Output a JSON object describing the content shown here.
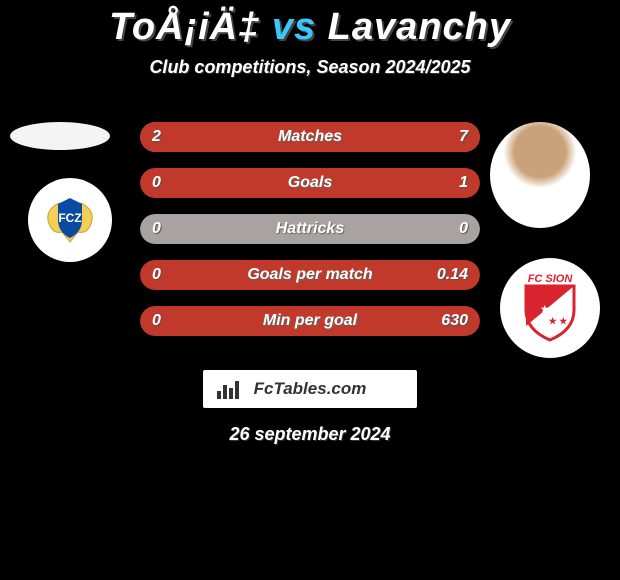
{
  "header": {
    "player1_surname": "ToÅ¡iÄ‡",
    "vs_word": "vs",
    "player2_surname": "Lavanchy",
    "subtitle": "Club competitions, Season 2024/2025",
    "date": "26 september 2024"
  },
  "branding": {
    "text": "FcTables.com"
  },
  "colors": {
    "left_fill": "#c0392b",
    "right_fill": "#c0392b",
    "neutral_base": "#a8a2a2",
    "text": "#ffffff",
    "accent": "#38c8ff"
  },
  "stat_rows": [
    {
      "label": "Matches",
      "left": "2",
      "right": "7",
      "left_pct": 22,
      "right_pct": 78,
      "mode": "split"
    },
    {
      "label": "Goals",
      "left": "0",
      "right": "1",
      "left_pct": 0,
      "right_pct": 100,
      "mode": "right"
    },
    {
      "label": "Hattricks",
      "left": "0",
      "right": "0",
      "left_pct": 0,
      "right_pct": 0,
      "mode": "none"
    },
    {
      "label": "Goals per match",
      "left": "0",
      "right": "0.14",
      "left_pct": 0,
      "right_pct": 100,
      "mode": "right"
    },
    {
      "label": "Min per goal",
      "left": "0",
      "right": "630",
      "left_pct": 0,
      "right_pct": 100,
      "mode": "right"
    }
  ],
  "avatars": {
    "player1_name": "player1-avatar",
    "player2_name": "player2-avatar",
    "club1": {
      "name": "club1-crest",
      "label": "FCZ",
      "bg": "#ffffff",
      "shield": "#0b4aa2",
      "lions": "#f4cf55"
    },
    "club2": {
      "name": "club2-crest",
      "label": "FC SION",
      "bg": "#ffffff",
      "shield_top": "#d9232e",
      "shield_bottom": "#ffffff",
      "text_color": "#d9232e"
    }
  }
}
